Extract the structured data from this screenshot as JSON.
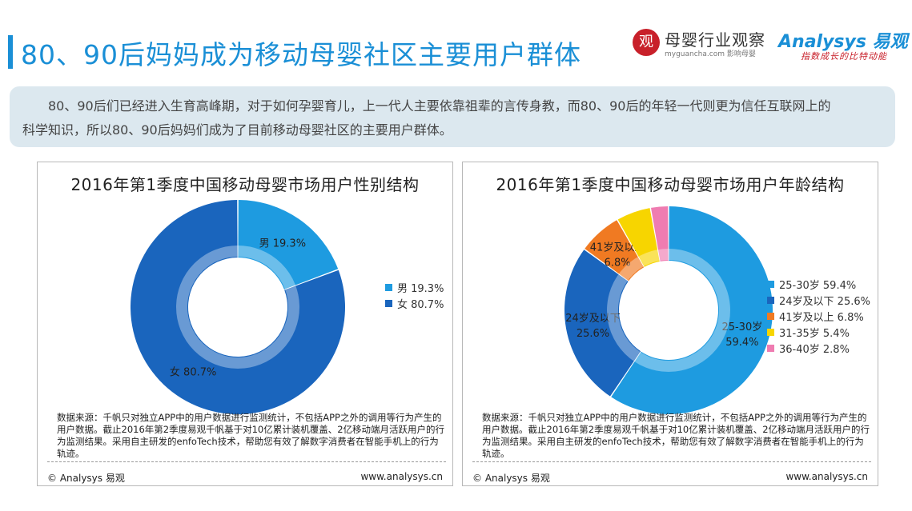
{
  "header": {
    "title": "80、90后妈妈成为移动母婴社区主要用户群体"
  },
  "logos": {
    "seal_char": "观",
    "industry_name": "母婴行业观察",
    "industry_site": "myguancha.com 影响母婴",
    "brand": "Analysys 易观",
    "slogan": "指数成长的比特动能"
  },
  "intro": {
    "line1": "80、90后们已经进入生育高峰期，对于如何孕婴育儿，上一代人主要依靠祖辈的言传身教，而80、90后的年轻一代则更为信任互联网上的",
    "line2": "科学知识，所以80、90后妈妈们成为了目前移动母婴社区的主要用户群体。"
  },
  "panels": [
    {
      "title": "2016年第1季度中国移动母婴市场用户性别结构",
      "source": "数据来源：千帆只对独立APP中的用户数据进行监测统计，不包括APP之外的调用等行为产生的用户数据。截止2016年第2季度易观千帆基于对10亿累计装机覆盖、2亿移动端月活跃用户的行为监测结果。采用自主研发的enfoTech技术，帮助您有效了解数字消费者在智能手机上的行为轨迹。",
      "footer_left": "© Analysys 易观",
      "footer_right": "www.analysys.cn"
    },
    {
      "title": "2016年第1季度中国移动母婴市场用户年龄结构",
      "source": "数据来源：千帆只对独立APP中的用户数据进行监测统计，不包括APP之外的调用等行为产生的用户数据。截止2016年第2季度易观千帆基于对10亿累计装机覆盖、2亿移动端月活跃用户的行为监测结果。采用自主研发的enfoTech技术，帮助您有效了解数字消费者在智能手机上的行为轨迹。",
      "footer_left": "© Analysys 易观",
      "footer_right": "www.analysys.cn"
    }
  ],
  "chart_data": [
    {
      "type": "pie",
      "donut": true,
      "title": "2016年第1季度中国移动母婴市场用户性别结构",
      "categories": [
        "男",
        "女"
      ],
      "values": [
        19.3,
        80.7
      ],
      "labels": [
        "19.3%",
        "80.7%"
      ],
      "colors": [
        "#1e9be0",
        "#1a65bd"
      ],
      "legend_position": "right"
    },
    {
      "type": "pie",
      "donut": true,
      "title": "2016年第1季度中国移动母婴市场用户年龄结构",
      "categories": [
        "25-30岁",
        "24岁及以下",
        "41岁及以上",
        "31-35岁",
        "36-40岁"
      ],
      "values": [
        59.4,
        25.6,
        6.8,
        5.4,
        2.8
      ],
      "labels": [
        "59.4%",
        "25.6%",
        "6.8%",
        "5.4%",
        "2.8%"
      ],
      "colors": [
        "#1e9be0",
        "#1a65bd",
        "#f07a22",
        "#f7d500",
        "#ef7cb1"
      ],
      "legend_position": "right"
    }
  ]
}
